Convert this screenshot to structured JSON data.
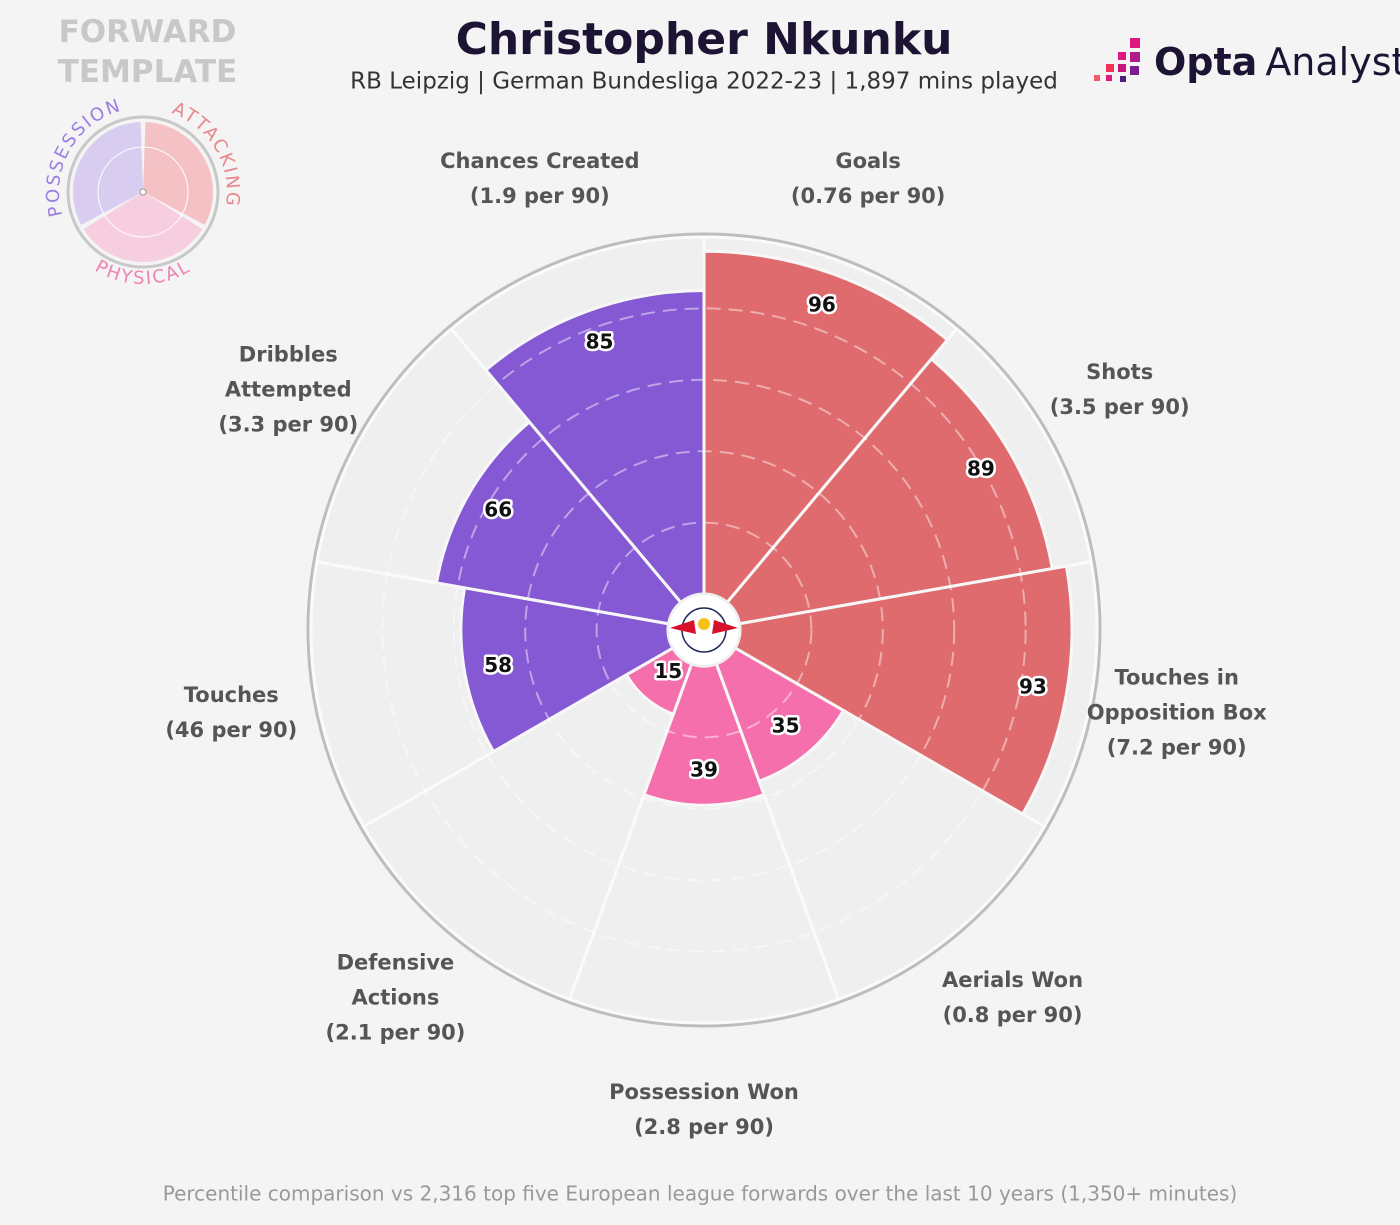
{
  "chart_data": {
    "type": "polar_bar",
    "title": "Christopher Nkunku",
    "subtitle": "RB Leipzig | German Bundesliga 2022-23 | 1,897 mins played",
    "categories": [
      "Goals",
      "Shots",
      "Touches in Opposition Box",
      "Aerials Won",
      "Possession Won",
      "Defensive Actions",
      "Touches",
      "Dribbles Attempted",
      "Chances Created"
    ],
    "per_90": [
      "(0.76 per 90)",
      "(3.5 per 90)",
      "(7.2 per 90)",
      "(0.8 per 90)",
      "(2.8 per 90)",
      "(2.1 per 90)",
      "(46 per 90)",
      "(3.3 per 90)",
      "(1.9 per 90)"
    ],
    "values": [
      96,
      89,
      93,
      35,
      39,
      15,
      58,
      66,
      85
    ],
    "colors": [
      "#e06b6e",
      "#e06b6e",
      "#e06b6e",
      "#f46fac",
      "#f46fac",
      "#f46fac",
      "#8559d4",
      "#8559d4",
      "#8559d4"
    ],
    "ylim": [
      0,
      100
    ],
    "yticks": [
      20,
      40,
      60,
      80
    ],
    "grid": true,
    "template": {
      "title": "FORWARD TEMPLATE",
      "groups": [
        {
          "name": "ATTACKING",
          "color": "#f3b9bc"
        },
        {
          "name": "PHYSICAL",
          "color": "#f7c6dc"
        },
        {
          "name": "POSSESSION",
          "color": "#d2c4ef"
        }
      ]
    },
    "logo": {
      "brand": "Opta",
      "product": "Analyst"
    },
    "footnote": "Percentile comparison vs 2,316 top five European league forwards over the last 10 years (1,350+ minutes)"
  }
}
